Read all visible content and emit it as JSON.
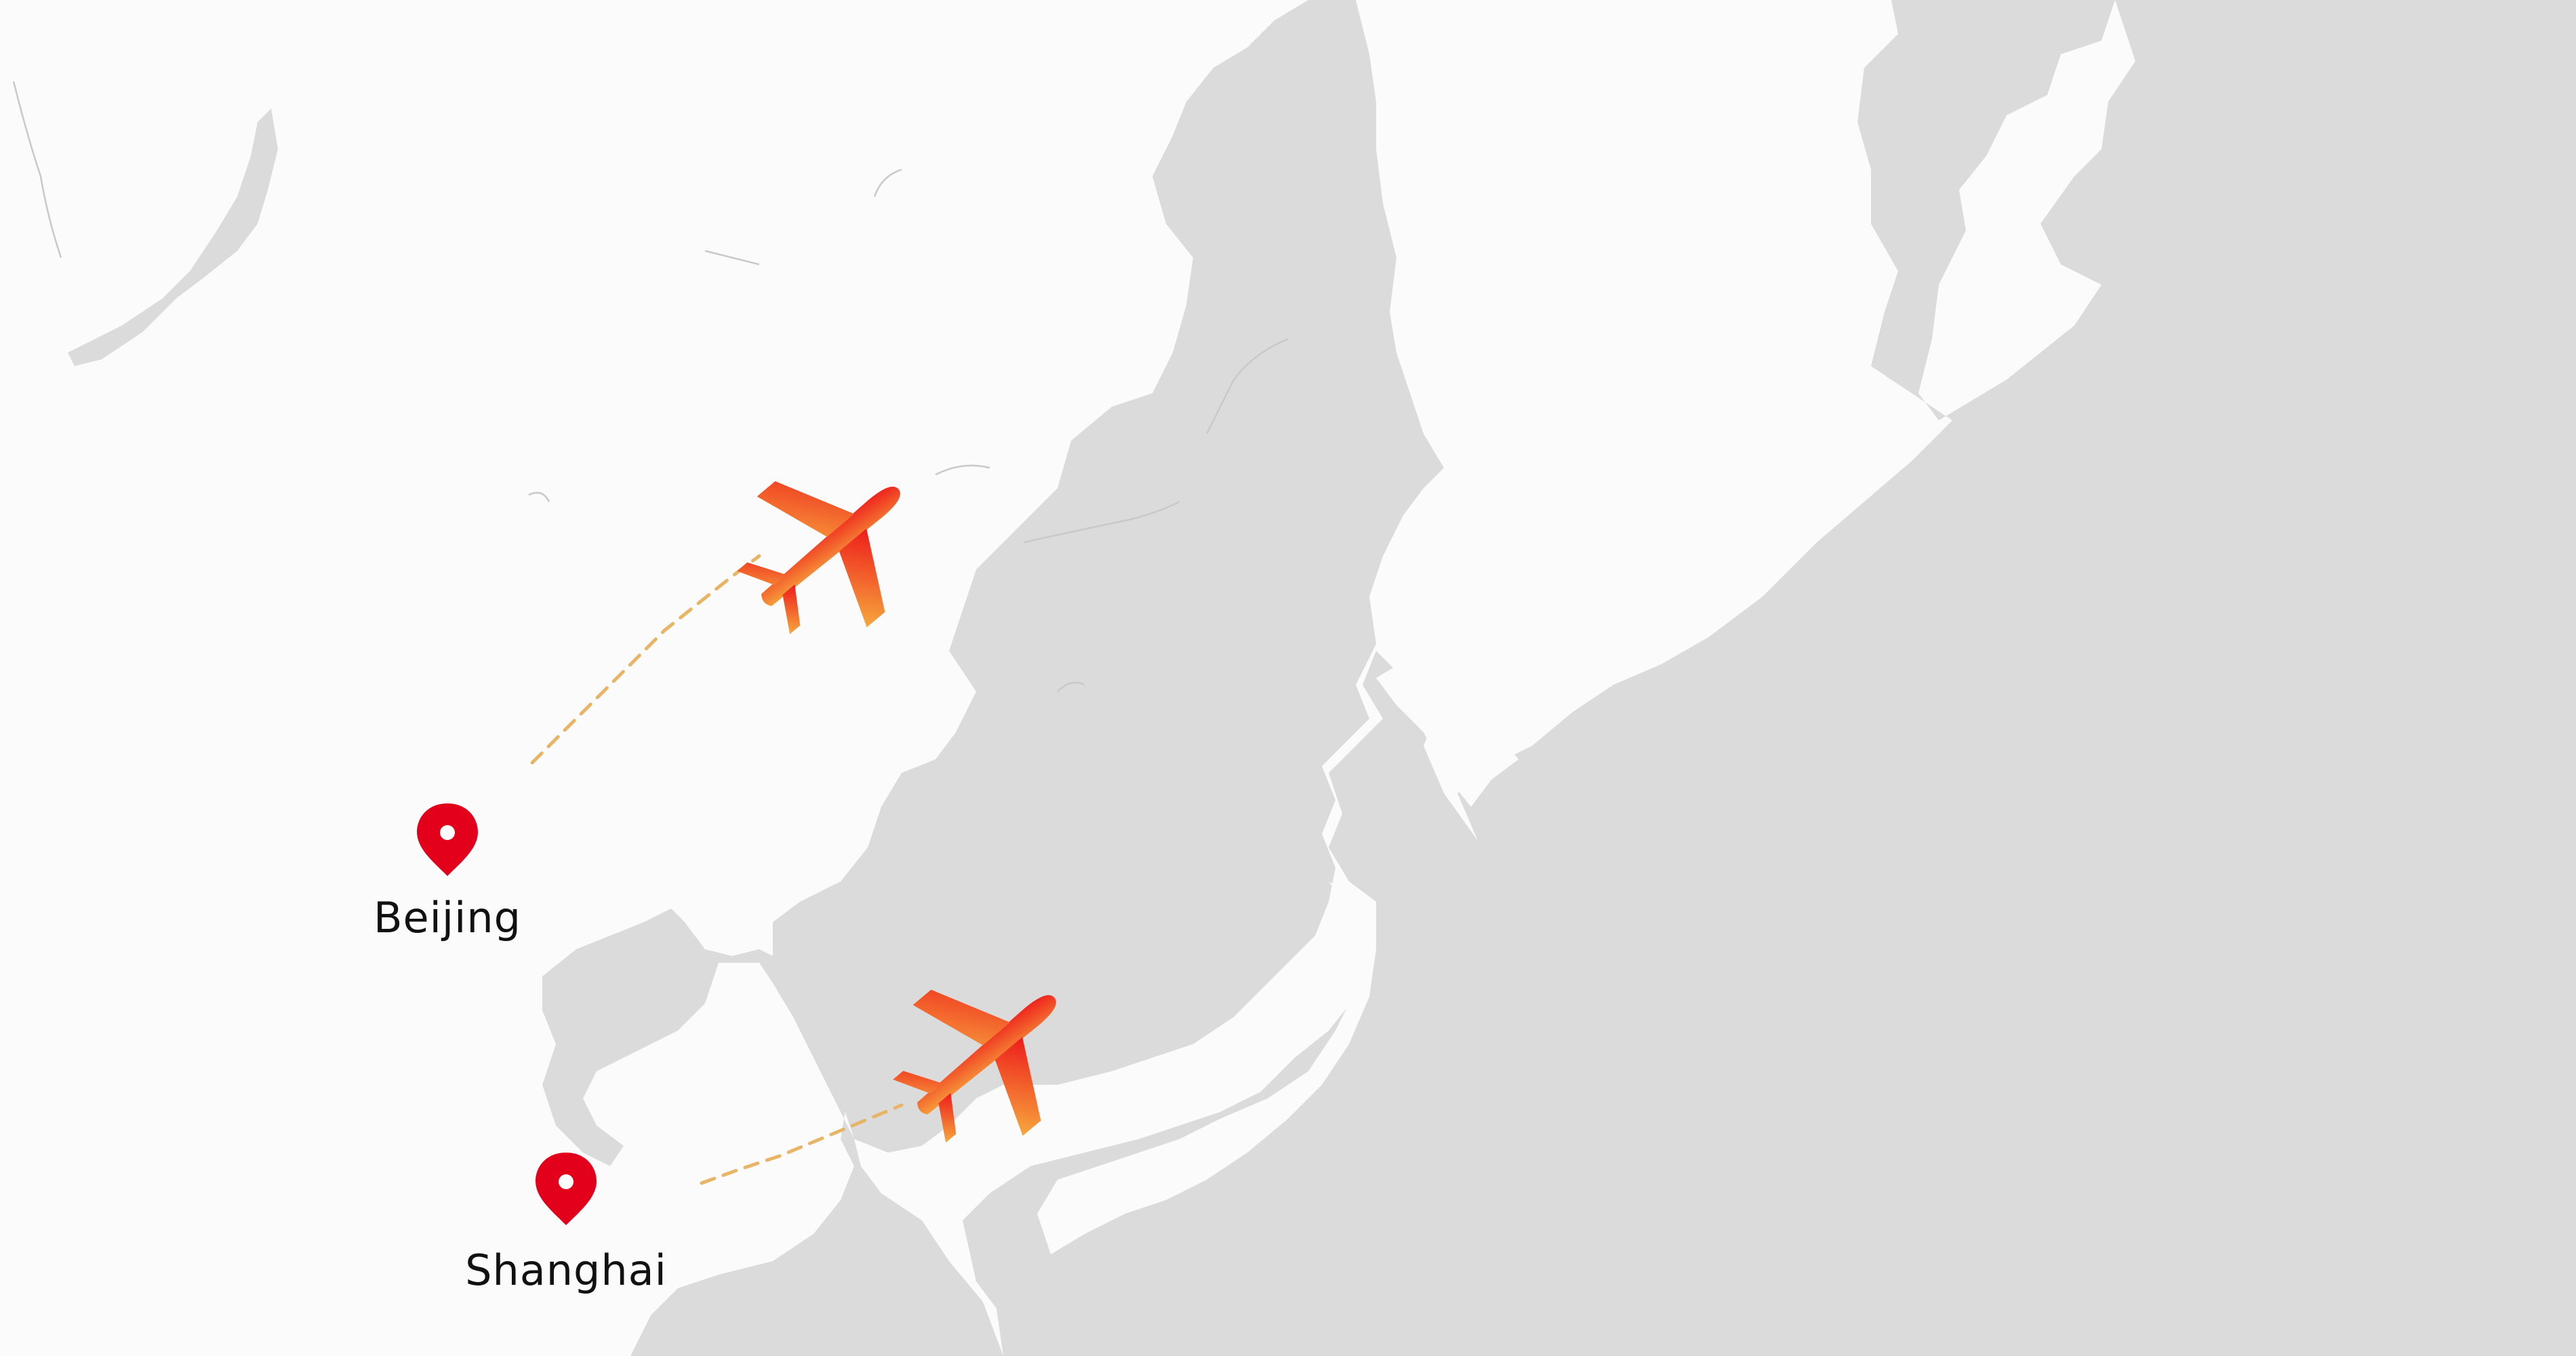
{
  "map": {
    "style": "light-gray",
    "colors": {
      "land": "#fbfbfb",
      "water": "#dbdbdb",
      "pin": "#e3001b",
      "route": "#e8b566",
      "plane_gradient_start": "#f7a83e",
      "plane_gradient_end": "#ee1c1c"
    }
  },
  "places": [
    {
      "id": "beijing",
      "name": "Beijing",
      "icon": "map-pin-icon"
    },
    {
      "id": "shanghai",
      "name": "Shanghai",
      "icon": "map-pin-icon"
    }
  ],
  "routes": [
    {
      "from": "Beijing",
      "icon": "airplane-icon"
    },
    {
      "from": "Shanghai",
      "icon": "airplane-icon"
    }
  ]
}
